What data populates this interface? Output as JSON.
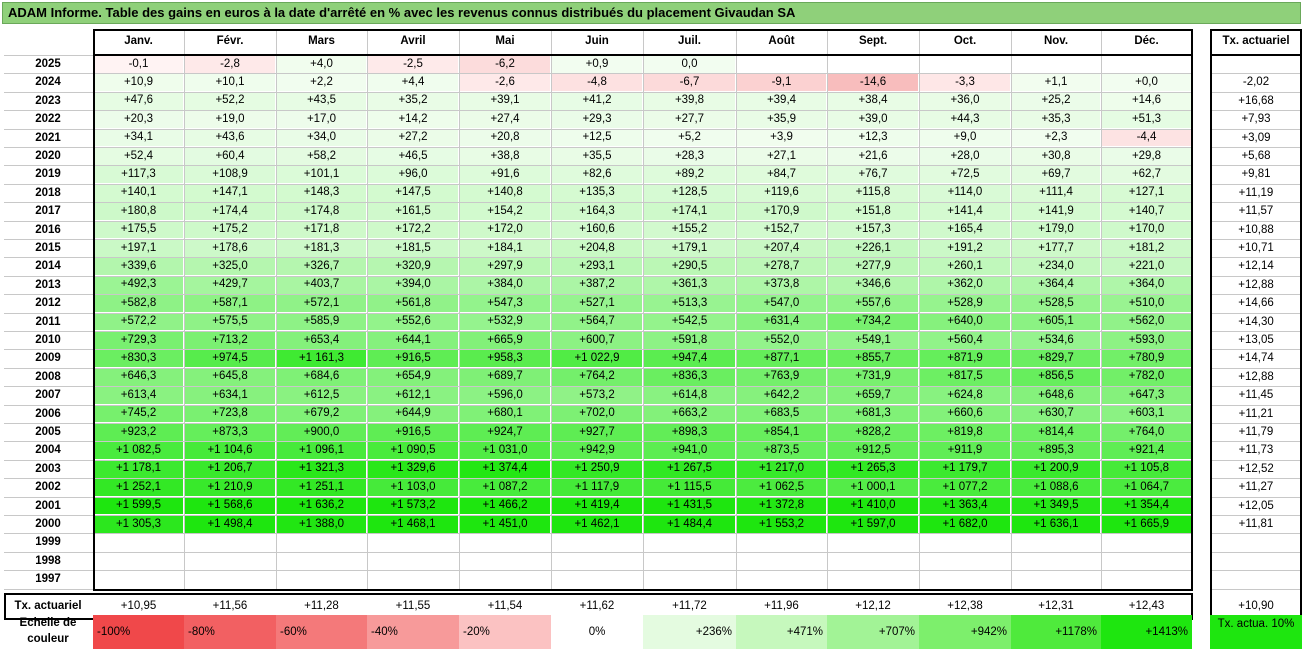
{
  "title": "ADAM Informe. Table des gains en euros à la date d'arrêté en % avec les revenus connus distribués du placement Givaudan SA",
  "months": [
    "Janv.",
    "Févr.",
    "Mars",
    "Avril",
    "Mai",
    "Juin",
    "Juil.",
    "Août",
    "Sept.",
    "Oct.",
    "Nov.",
    "Déc."
  ],
  "actuarial_header": "Tx. actuariel",
  "footer_label": "Tx. actuariel",
  "chart_data": {
    "type": "table",
    "rows": [
      {
        "year": "2025",
        "values": [
          "-0,1",
          "-2,8",
          "+4,0",
          "-2,5",
          "-6,2",
          "+0,9",
          "0,0",
          "",
          "",
          "",
          "",
          ""
        ],
        "rate": ""
      },
      {
        "year": "2024",
        "values": [
          "+10,9",
          "+10,1",
          "+2,2",
          "+4,4",
          "-2,6",
          "-4,8",
          "-6,7",
          "-9,1",
          "-14,6",
          "-3,3",
          "+1,1",
          "+0,0"
        ],
        "rate": "-2,02"
      },
      {
        "year": "2023",
        "values": [
          "+47,6",
          "+52,2",
          "+43,5",
          "+35,2",
          "+39,1",
          "+41,2",
          "+39,8",
          "+39,4",
          "+38,4",
          "+36,0",
          "+25,2",
          "+14,6"
        ],
        "rate": "+16,68"
      },
      {
        "year": "2022",
        "values": [
          "+20,3",
          "+19,0",
          "+17,0",
          "+14,2",
          "+27,4",
          "+29,3",
          "+27,7",
          "+35,9",
          "+39,0",
          "+44,3",
          "+35,3",
          "+51,3"
        ],
        "rate": "+7,93"
      },
      {
        "year": "2021",
        "values": [
          "+34,1",
          "+43,6",
          "+34,0",
          "+27,2",
          "+20,8",
          "+12,5",
          "+5,2",
          "+3,9",
          "+12,3",
          "+9,0",
          "+2,3",
          "-4,4"
        ],
        "rate": "+3,09"
      },
      {
        "year": "2020",
        "values": [
          "+52,4",
          "+60,4",
          "+58,2",
          "+46,5",
          "+38,8",
          "+35,5",
          "+28,3",
          "+27,1",
          "+21,6",
          "+28,0",
          "+30,8",
          "+29,8"
        ],
        "rate": "+5,68"
      },
      {
        "year": "2019",
        "values": [
          "+117,3",
          "+108,9",
          "+101,1",
          "+96,0",
          "+91,6",
          "+82,6",
          "+89,2",
          "+84,7",
          "+76,7",
          "+72,5",
          "+69,7",
          "+62,7"
        ],
        "rate": "+9,81"
      },
      {
        "year": "2018",
        "values": [
          "+140,1",
          "+147,1",
          "+148,3",
          "+147,5",
          "+140,8",
          "+135,3",
          "+128,5",
          "+119,6",
          "+115,8",
          "+114,0",
          "+111,4",
          "+127,1"
        ],
        "rate": "+11,19"
      },
      {
        "year": "2017",
        "values": [
          "+180,8",
          "+174,4",
          "+174,8",
          "+161,5",
          "+154,2",
          "+164,3",
          "+174,1",
          "+170,9",
          "+151,8",
          "+141,4",
          "+141,9",
          "+140,7"
        ],
        "rate": "+11,57"
      },
      {
        "year": "2016",
        "values": [
          "+175,5",
          "+175,2",
          "+171,8",
          "+172,2",
          "+172,0",
          "+160,6",
          "+155,2",
          "+152,7",
          "+157,3",
          "+165,4",
          "+179,0",
          "+170,0"
        ],
        "rate": "+10,88"
      },
      {
        "year": "2015",
        "values": [
          "+197,1",
          "+178,6",
          "+181,3",
          "+181,5",
          "+184,1",
          "+204,8",
          "+179,1",
          "+207,4",
          "+226,1",
          "+191,2",
          "+177,7",
          "+181,2"
        ],
        "rate": "+10,71"
      },
      {
        "year": "2014",
        "values": [
          "+339,6",
          "+325,0",
          "+326,7",
          "+320,9",
          "+297,9",
          "+293,1",
          "+290,5",
          "+278,7",
          "+277,9",
          "+260,1",
          "+234,0",
          "+221,0"
        ],
        "rate": "+12,14"
      },
      {
        "year": "2013",
        "values": [
          "+492,3",
          "+429,7",
          "+403,7",
          "+394,0",
          "+384,0",
          "+387,2",
          "+361,3",
          "+373,8",
          "+346,6",
          "+362,0",
          "+364,4",
          "+364,0"
        ],
        "rate": "+12,88"
      },
      {
        "year": "2012",
        "values": [
          "+582,8",
          "+587,1",
          "+572,1",
          "+561,8",
          "+547,3",
          "+527,1",
          "+513,3",
          "+547,0",
          "+557,6",
          "+528,9",
          "+528,5",
          "+510,0"
        ],
        "rate": "+14,66"
      },
      {
        "year": "2011",
        "values": [
          "+572,2",
          "+575,5",
          "+585,9",
          "+552,6",
          "+532,9",
          "+564,7",
          "+542,5",
          "+631,4",
          "+734,2",
          "+640,0",
          "+605,1",
          "+562,0"
        ],
        "rate": "+14,30"
      },
      {
        "year": "2010",
        "values": [
          "+729,3",
          "+713,2",
          "+653,4",
          "+644,1",
          "+665,9",
          "+600,7",
          "+591,8",
          "+552,0",
          "+549,1",
          "+560,4",
          "+534,6",
          "+593,0"
        ],
        "rate": "+13,05"
      },
      {
        "year": "2009",
        "values": [
          "+830,3",
          "+974,5",
          "+1 161,3",
          "+916,5",
          "+958,3",
          "+1 022,9",
          "+947,4",
          "+877,1",
          "+855,7",
          "+871,9",
          "+829,7",
          "+780,9"
        ],
        "rate": "+14,74"
      },
      {
        "year": "2008",
        "values": [
          "+646,3",
          "+645,8",
          "+684,6",
          "+654,9",
          "+689,7",
          "+764,2",
          "+836,3",
          "+763,9",
          "+731,9",
          "+817,5",
          "+856,5",
          "+782,0"
        ],
        "rate": "+12,88"
      },
      {
        "year": "2007",
        "values": [
          "+613,4",
          "+634,1",
          "+612,5",
          "+612,1",
          "+596,0",
          "+573,2",
          "+614,8",
          "+642,2",
          "+659,7",
          "+624,8",
          "+648,6",
          "+647,3"
        ],
        "rate": "+11,45"
      },
      {
        "year": "2006",
        "values": [
          "+745,2",
          "+723,8",
          "+679,2",
          "+644,9",
          "+680,1",
          "+702,0",
          "+663,2",
          "+683,5",
          "+681,3",
          "+660,6",
          "+630,7",
          "+603,1"
        ],
        "rate": "+11,21"
      },
      {
        "year": "2005",
        "values": [
          "+923,2",
          "+873,3",
          "+900,0",
          "+916,5",
          "+924,7",
          "+927,7",
          "+898,3",
          "+854,1",
          "+828,2",
          "+819,8",
          "+814,4",
          "+764,0"
        ],
        "rate": "+11,79"
      },
      {
        "year": "2004",
        "values": [
          "+1 082,5",
          "+1 104,6",
          "+1 096,1",
          "+1 090,5",
          "+1 031,0",
          "+942,9",
          "+941,0",
          "+873,5",
          "+912,5",
          "+911,9",
          "+895,3",
          "+921,4"
        ],
        "rate": "+11,73"
      },
      {
        "year": "2003",
        "values": [
          "+1 178,1",
          "+1 206,7",
          "+1 321,3",
          "+1 329,6",
          "+1 374,4",
          "+1 250,9",
          "+1 267,5",
          "+1 217,0",
          "+1 265,3",
          "+1 179,7",
          "+1 200,9",
          "+1 105,8"
        ],
        "rate": "+12,52"
      },
      {
        "year": "2002",
        "values": [
          "+1 252,1",
          "+1 210,9",
          "+1 251,1",
          "+1 103,0",
          "+1 087,2",
          "+1 117,9",
          "+1 115,5",
          "+1 062,5",
          "+1 000,1",
          "+1 077,2",
          "+1 088,6",
          "+1 064,7"
        ],
        "rate": "+11,27"
      },
      {
        "year": "2001",
        "values": [
          "+1 599,5",
          "+1 568,6",
          "+1 636,2",
          "+1 573,2",
          "+1 466,2",
          "+1 419,4",
          "+1 431,5",
          "+1 372,8",
          "+1 410,0",
          "+1 363,4",
          "+1 349,5",
          "+1 354,4"
        ],
        "rate": "+12,05"
      },
      {
        "year": "2000",
        "values": [
          "+1 305,3",
          "+1 498,4",
          "+1 388,0",
          "+1 468,1",
          "+1 451,0",
          "+1 462,1",
          "+1 484,4",
          "+1 553,2",
          "+1 597,0",
          "+1 682,0",
          "+1 636,1",
          "+1 665,9"
        ],
        "rate": "+11,81"
      },
      {
        "year": "1999",
        "values": [
          "",
          "",
          "",
          "",
          "",
          "",
          "",
          "",
          "",
          "",
          "",
          ""
        ],
        "rate": ""
      },
      {
        "year": "1998",
        "values": [
          "",
          "",
          "",
          "",
          "",
          "",
          "",
          "",
          "",
          "",
          "",
          ""
        ],
        "rate": ""
      },
      {
        "year": "1997",
        "values": [
          "",
          "",
          "",
          "",
          "",
          "",
          "",
          "",
          "",
          "",
          "",
          ""
        ],
        "rate": ""
      }
    ],
    "footer_values": [
      "+10,95",
      "+11,56",
      "+11,28",
      "+11,55",
      "+11,54",
      "+11,62",
      "+11,72",
      "+11,96",
      "+12,12",
      "+12,38",
      "+12,31",
      "+12,43"
    ],
    "footer_rate": "+10,90"
  },
  "legend": {
    "label": "Echelle de couleur",
    "cells": [
      {
        "text": "-100%",
        "color": "#f0484a",
        "align": "left"
      },
      {
        "text": "-80%",
        "color": "#f26062",
        "align": "left"
      },
      {
        "text": "-60%",
        "color": "#f4797a",
        "align": "left"
      },
      {
        "text": "-40%",
        "color": "#f79a9a",
        "align": "left"
      },
      {
        "text": "-20%",
        "color": "#fbc2c2",
        "align": "left"
      },
      {
        "text": "0%",
        "color": "#ffffff",
        "align": "center"
      },
      {
        "text": "+236%",
        "color": "#e4fbe0",
        "align": "right"
      },
      {
        "text": "+471%",
        "color": "#c6f8bd",
        "align": "right"
      },
      {
        "text": "+707%",
        "color": "#a2f396",
        "align": "right"
      },
      {
        "text": "+942%",
        "color": "#7def6c",
        "align": "right"
      },
      {
        "text": "+1178%",
        "color": "#4fea3c",
        "align": "right"
      },
      {
        "text": "+1413%",
        "color": "#1ee60f",
        "align": "right"
      }
    ],
    "rate_label": "Tx. actua. 10%",
    "rate_color": "#1ee60f"
  }
}
